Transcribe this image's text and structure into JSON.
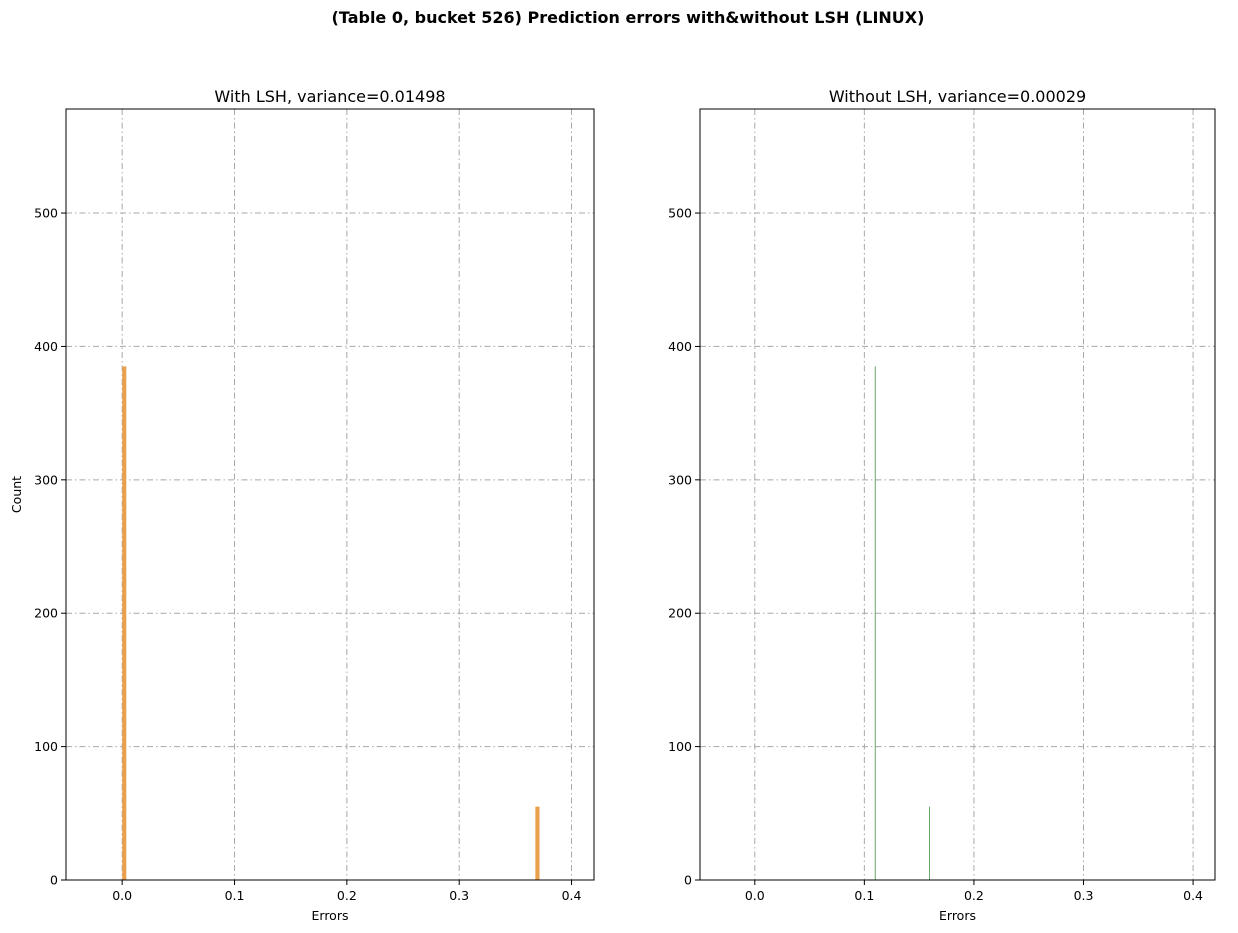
{
  "figure": {
    "suptitle": "(Table 0, bucket 526) Prediction errors with&without LSH (LINUX)"
  },
  "chart_data": [
    {
      "type": "bar",
      "title": "With LSH, variance=0.01498",
      "xlabel": "Errors",
      "ylabel": "Count",
      "xlim": [
        -0.05,
        0.42
      ],
      "ylim": [
        0,
        578
      ],
      "xticks": [
        0.0,
        0.1,
        0.2,
        0.3,
        0.4
      ],
      "xtick_labels": [
        "0.0",
        "0.1",
        "0.2",
        "0.3",
        "0.4"
      ],
      "yticks": [
        0,
        100,
        200,
        300,
        400,
        500
      ],
      "ytick_labels": [
        "0",
        "100",
        "200",
        "300",
        "400",
        "500"
      ],
      "grid": true,
      "color": "#e8a04d",
      "bars": [
        {
          "x": 0.0,
          "width": 0.0037,
          "value": 385
        },
        {
          "x": 0.3678,
          "width": 0.0037,
          "value": 55
        }
      ]
    },
    {
      "type": "bar",
      "title": "Without LSH, variance=0.00029",
      "xlabel": "Errors",
      "ylabel": "",
      "xlim": [
        -0.05,
        0.42
      ],
      "ylim": [
        0,
        578
      ],
      "xticks": [
        0.0,
        0.1,
        0.2,
        0.3,
        0.4
      ],
      "xtick_labels": [
        "0.0",
        "0.1",
        "0.2",
        "0.3",
        "0.4"
      ],
      "yticks": [
        0,
        100,
        200,
        300,
        400,
        500
      ],
      "ytick_labels": [
        "0",
        "100",
        "200",
        "300",
        "400",
        "500"
      ],
      "grid": true,
      "color": "#6aa56a",
      "bars": [
        {
          "x": 0.1095,
          "width": 0.0005,
          "value": 385
        },
        {
          "x": 0.159,
          "width": 0.0005,
          "value": 55
        }
      ]
    }
  ]
}
